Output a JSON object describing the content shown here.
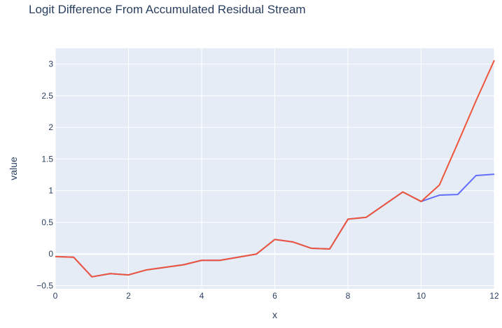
{
  "chart_data": {
    "type": "line",
    "title": "Logit Difference From Accumulated Residual Stream",
    "xlabel": "x",
    "ylabel": "value",
    "xlim": [
      0,
      12
    ],
    "ylim": [
      -0.55,
      3.25
    ],
    "grid": true,
    "legend": "none",
    "x_ticks": [
      0,
      2,
      4,
      6,
      8,
      10,
      12
    ],
    "y_ticks": [
      -0.5,
      0,
      0.5,
      1,
      1.5,
      2,
      2.5,
      3
    ],
    "y_tick_labels": [
      "−0.5",
      "0",
      "0.5",
      "1",
      "1.5",
      "2",
      "2.5",
      "3"
    ],
    "series": [
      {
        "color": "#636efa",
        "x": [
          0,
          0.5,
          1,
          1.5,
          2,
          2.5,
          3,
          3.5,
          4,
          4.5,
          5,
          5.5,
          6,
          6.5,
          7,
          7.5,
          8,
          8.5,
          9,
          9.5,
          10,
          10.5,
          11,
          11.5,
          12
        ],
        "values": [
          -0.04,
          -0.05,
          -0.36,
          -0.31,
          -0.33,
          -0.25,
          -0.21,
          -0.17,
          -0.1,
          -0.1,
          -0.05,
          0.0,
          0.23,
          0.19,
          0.09,
          0.08,
          0.55,
          0.58,
          0.78,
          0.98,
          0.83,
          0.93,
          0.94,
          1.24,
          1.26
        ]
      },
      {
        "color": "#ef553b",
        "x": [
          0,
          0.5,
          1,
          1.5,
          2,
          2.5,
          3,
          3.5,
          4,
          4.5,
          5,
          5.5,
          6,
          6.5,
          7,
          7.5,
          8,
          8.5,
          9,
          9.5,
          10,
          10.5,
          11,
          11.5,
          12
        ],
        "values": [
          -0.04,
          -0.05,
          -0.36,
          -0.31,
          -0.33,
          -0.25,
          -0.21,
          -0.17,
          -0.1,
          -0.1,
          -0.05,
          0.0,
          0.23,
          0.19,
          0.09,
          0.08,
          0.55,
          0.58,
          0.78,
          0.98,
          0.83,
          1.09,
          1.75,
          2.42,
          3.06
        ]
      }
    ],
    "colors": {
      "plot_background": "#e5ecf6",
      "grid": "#ffffff",
      "text": "#2a3f5f"
    }
  }
}
